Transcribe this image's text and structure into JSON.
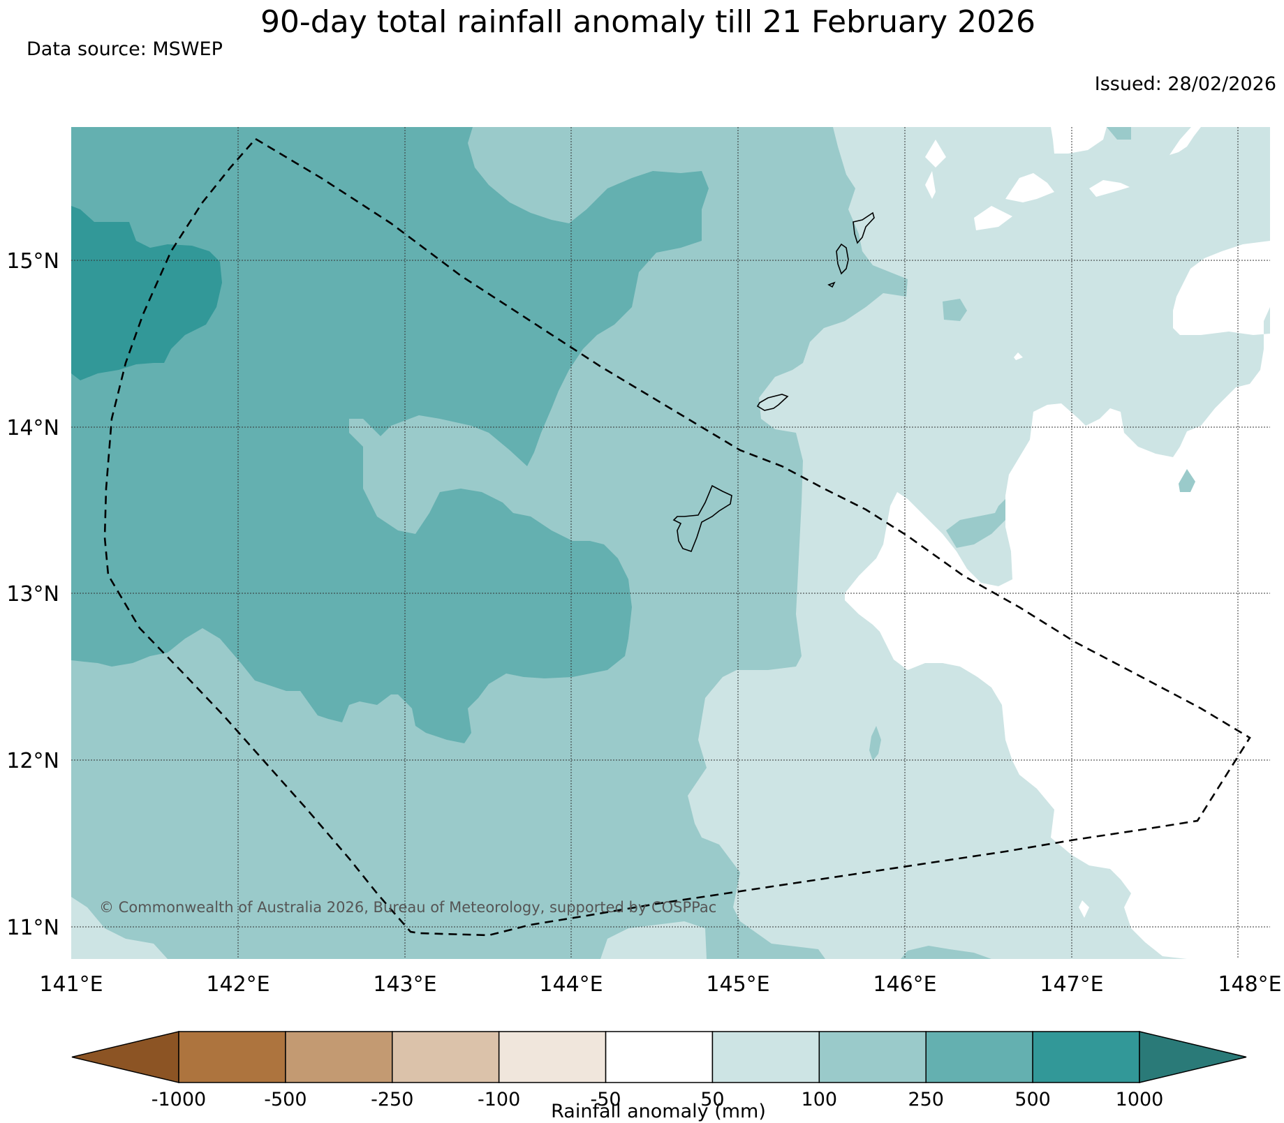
{
  "figure": {
    "title": "90-day total rainfall anomaly till 21 February 2026",
    "data_source": "Data source: MSWEP",
    "issued": "Issued: 28/02/2026",
    "copyright": "© Commonwealth of Australia 2026, Bureau of Meteorology, supported by COSPPac"
  },
  "map": {
    "lon_range": [
      141,
      148.2
    ],
    "lat_range": [
      10.8,
      15.8
    ],
    "lon_ticks": [
      "141°E",
      "142°E",
      "143°E",
      "144°E",
      "145°E",
      "146°E",
      "147°E",
      "148°E"
    ],
    "lat_ticks": [
      "15°N",
      "14°N",
      "13°N",
      "12°N",
      "11°N"
    ]
  },
  "colorbar": {
    "label": "Rainfall anomaly (mm)",
    "tick_labels": [
      "-1000",
      "-500",
      "-250",
      "-100",
      "-50",
      "50",
      "100",
      "250",
      "500",
      "1000"
    ],
    "colors": {
      "below_min": "#8c5424",
      "bins": [
        "#ad743e",
        "#c39a72",
        "#dbc2aa",
        "#f0e6dc",
        "#ffffff",
        "#cde4e4",
        "#9acaca",
        "#64b0b0",
        "#329898"
      ],
      "above_max": "#2a7a78"
    }
  }
}
